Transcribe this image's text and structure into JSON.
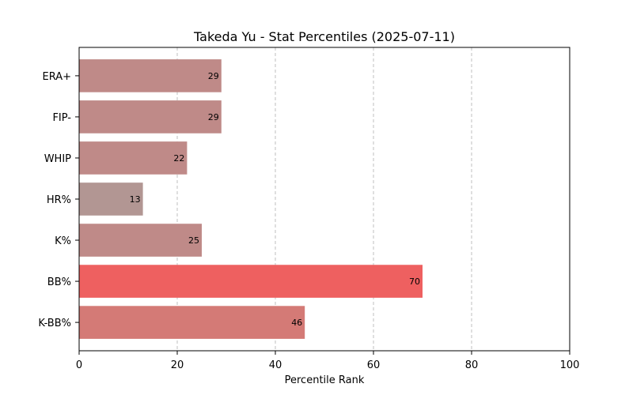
{
  "chart_data": {
    "type": "bar",
    "orientation": "horizontal",
    "title": "Takeda Yu - Stat Percentiles (2025-07-11)",
    "xlabel": "Percentile Rank",
    "ylabel": "",
    "xlim": [
      0,
      100
    ],
    "xticks": [
      0,
      20,
      40,
      60,
      80,
      100
    ],
    "grid": "x-dashed",
    "categories": [
      "ERA+",
      "FIP-",
      "WHIP",
      "HR%",
      "K%",
      "BB%",
      "K-BB%"
    ],
    "values": [
      29,
      29,
      22,
      13,
      25,
      70,
      46
    ],
    "colors": [
      "#bf8a88",
      "#bf8a88",
      "#bf8a88",
      "#b29693",
      "#bf8a88",
      "#ee6060",
      "#d47a76"
    ]
  }
}
